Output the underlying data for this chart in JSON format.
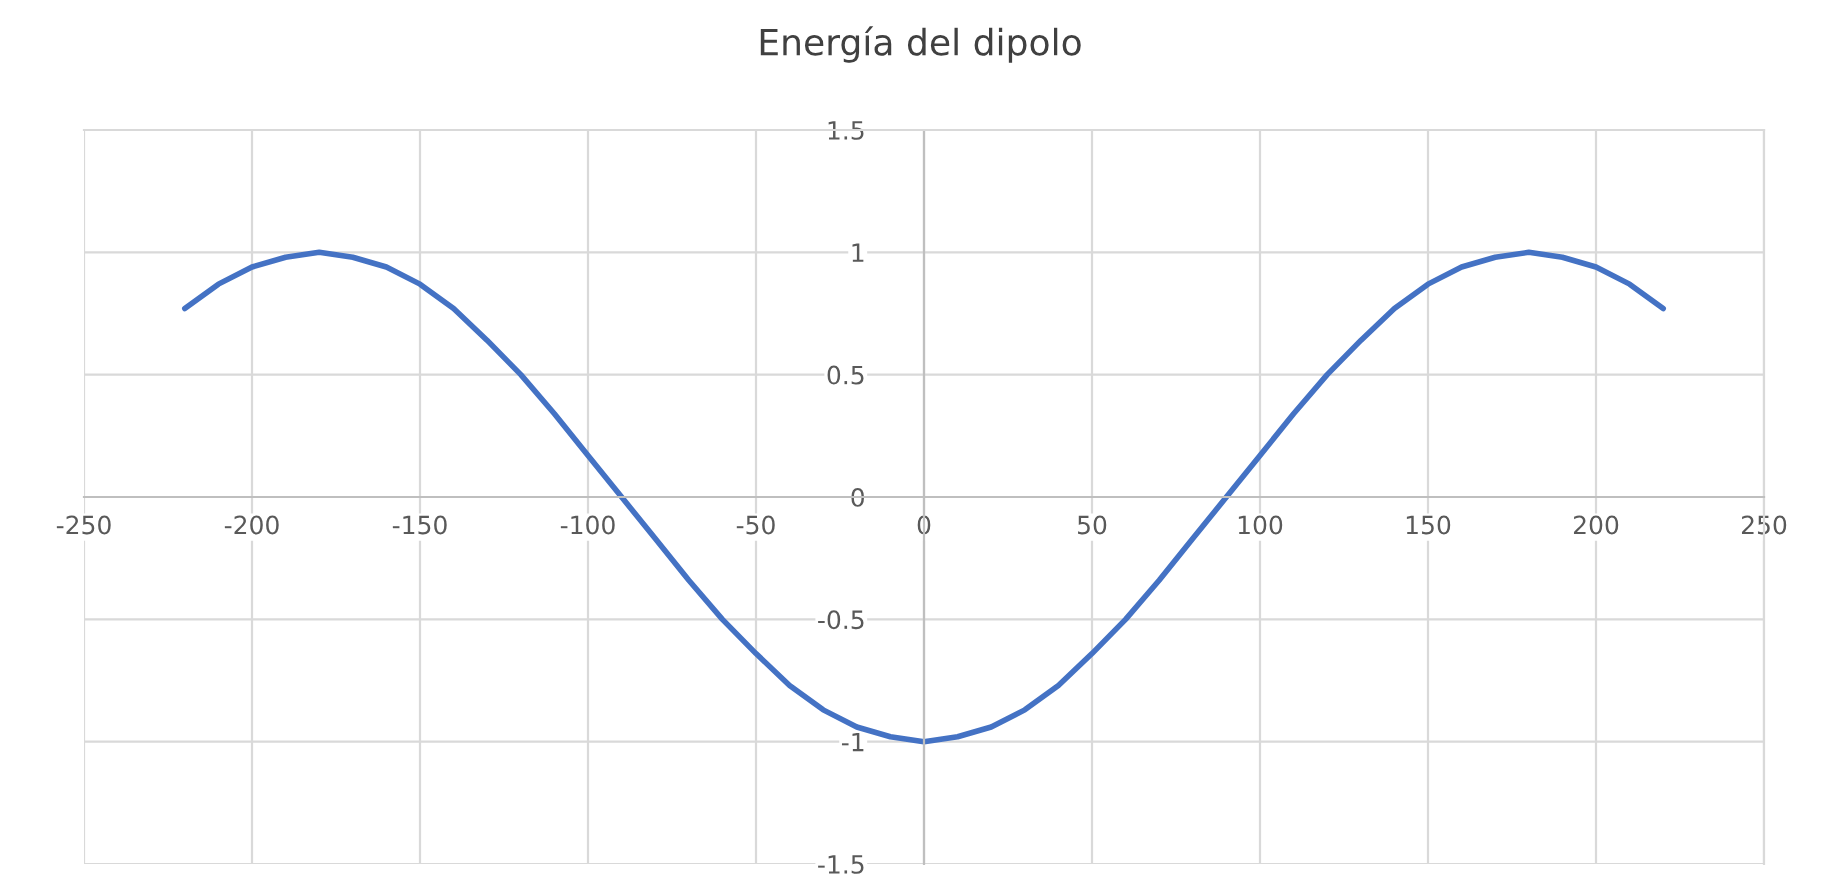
{
  "chart_data": {
    "type": "line",
    "title": "Energía del dipolo",
    "series": [
      {
        "color": "#4472c4",
        "x": [
          -220,
          -210,
          -200,
          -190,
          -180,
          -170,
          -160,
          -150,
          -140,
          -130,
          -120,
          -110,
          -100,
          -90,
          -80,
          -70,
          -60,
          -50,
          -40,
          -30,
          -20,
          -10,
          0,
          10,
          20,
          30,
          40,
          50,
          60,
          70,
          80,
          90,
          100,
          110,
          120,
          130,
          140,
          150,
          160,
          170,
          180,
          190,
          200,
          210,
          220
        ],
        "values": [
          0.77,
          0.87,
          0.94,
          0.98,
          1,
          0.98,
          0.94,
          0.87,
          0.77,
          0.64,
          0.5,
          0.34,
          0.17,
          0,
          -0.17,
          -0.34,
          -0.5,
          -0.64,
          -0.77,
          -0.87,
          -0.94,
          -0.98,
          -1,
          -0.98,
          -0.94,
          -0.87,
          -0.77,
          -0.64,
          -0.5,
          -0.34,
          -0.17,
          0,
          0.17,
          0.34,
          0.5,
          0.64,
          0.77,
          0.87,
          0.94,
          0.98,
          1,
          0.98,
          0.94,
          0.87,
          0.77
        ]
      }
    ],
    "xlim": [
      -250,
      250
    ],
    "xticks": [
      -250,
      -200,
      -150,
      -100,
      -50,
      0,
      50,
      100,
      150,
      200,
      250
    ],
    "ylim": [
      -1.5,
      1.5
    ],
    "yticks": [
      -1.5,
      -1,
      -0.5,
      0,
      0.5,
      1,
      1.5
    ],
    "grid": true,
    "legend": false,
    "marker": "none",
    "line_style": "solid"
  }
}
